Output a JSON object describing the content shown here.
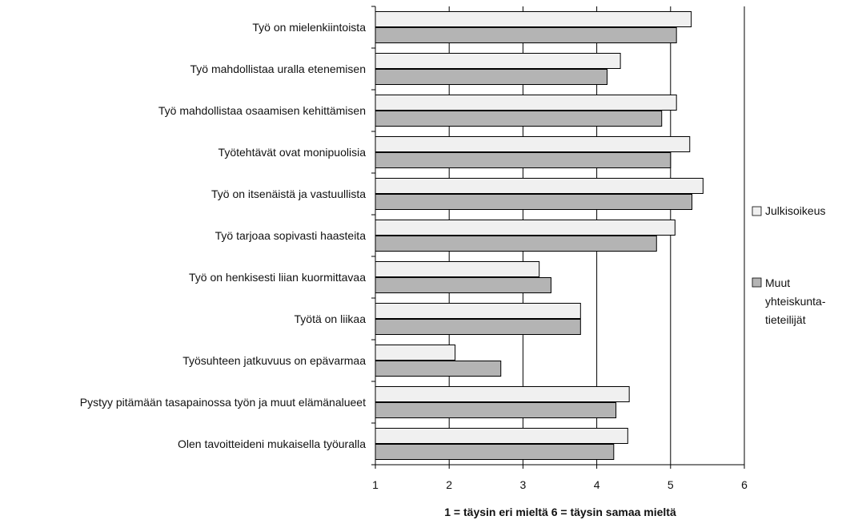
{
  "chart_data": {
    "type": "bar",
    "orientation": "horizontal",
    "categories": [
      "Työ on mielenkiintoista",
      "Työ mahdollistaa uralla etenemisen",
      "Työ mahdollistaa osaamisen kehittämisen",
      "Työtehtävät ovat monipuolisia",
      "Työ on itsenäistä ja vastuullista",
      "Työ tarjoaa sopivasti haasteita",
      "Työ on henkisesti liian kuormittavaa",
      "Työtä on liikaa",
      "Työsuhteen jatkuvuus on epävarmaa",
      "Pystyy pitämään tasapainossa työn ja muut elämänalueet",
      "Olen tavoitteideni mukaisella työuralla"
    ],
    "series": [
      {
        "name": "Julkisoikeus",
        "color": "#f0f0f0",
        "values": [
          5.28,
          4.32,
          5.08,
          5.26,
          5.44,
          5.06,
          3.22,
          3.78,
          2.08,
          4.44,
          4.42
        ]
      },
      {
        "name": "Muut yhteiskunta-tieteilijät",
        "legend_lines": [
          "Muut",
          "yhteiskunta-",
          "tieteilijät"
        ],
        "color": "#b4b4b4",
        "values": [
          5.08,
          4.14,
          4.88,
          5.0,
          5.29,
          4.81,
          3.38,
          3.78,
          2.7,
          4.26,
          4.23
        ]
      }
    ],
    "xlim": [
      1,
      6
    ],
    "xticks": [
      "1",
      "2",
      "3",
      "4",
      "5",
      "6"
    ],
    "xlabel": "1 = täysin eri mieltä  6 = täysin samaa mieltä",
    "grid": "vertical",
    "legend_position": "right"
  }
}
